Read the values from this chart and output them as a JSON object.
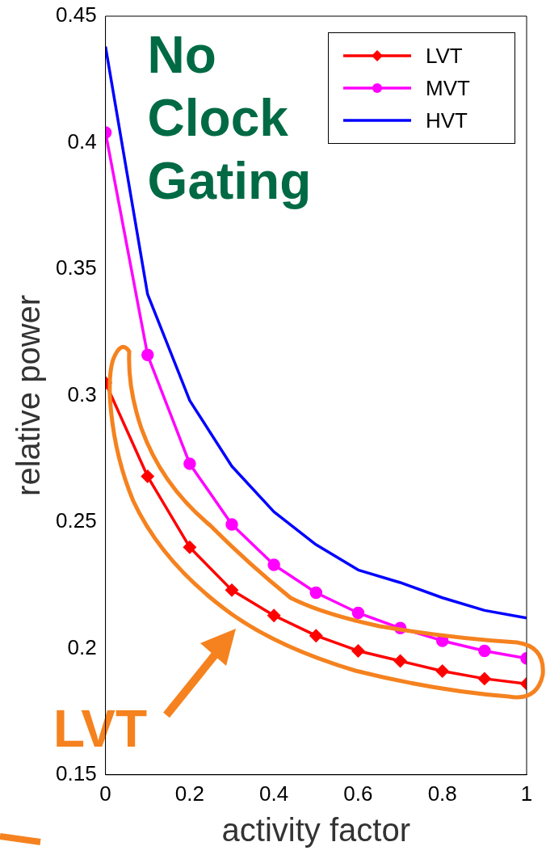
{
  "chart_data": {
    "type": "line",
    "xlabel": "activity factor",
    "ylabel": "relative power",
    "x": [
      0,
      0.1,
      0.2,
      0.3,
      0.4,
      0.5,
      0.6,
      0.7,
      0.8,
      0.9,
      1
    ],
    "series": [
      {
        "name": "LVT",
        "color": "#ff0000",
        "marker": "diamond",
        "values": [
          0.305,
          0.268,
          0.24,
          0.223,
          0.213,
          0.205,
          0.199,
          0.195,
          0.191,
          0.188,
          0.186
        ]
      },
      {
        "name": "MVT",
        "color": "#ff00ff",
        "marker": "circle",
        "values": [
          0.404,
          0.316,
          0.273,
          0.249,
          0.233,
          0.222,
          0.214,
          0.208,
          0.203,
          0.199,
          0.196
        ]
      },
      {
        "name": "HVT",
        "color": "#0000ff",
        "marker": "none",
        "values": [
          0.438,
          0.34,
          0.298,
          0.272,
          0.254,
          0.241,
          0.231,
          0.226,
          0.22,
          0.215,
          0.212
        ]
      }
    ],
    "xlim": [
      0,
      1
    ],
    "xticks": [
      0,
      0.2,
      0.4,
      0.6,
      0.8,
      1
    ],
    "ylim": [
      0.15,
      0.45
    ],
    "yticks": [
      0.15,
      0.2,
      0.25,
      0.3,
      0.35,
      0.4,
      0.45
    ],
    "grid": false,
    "legend": "top right",
    "annotations": [
      "No Clock Gating",
      "LVT"
    ]
  }
}
